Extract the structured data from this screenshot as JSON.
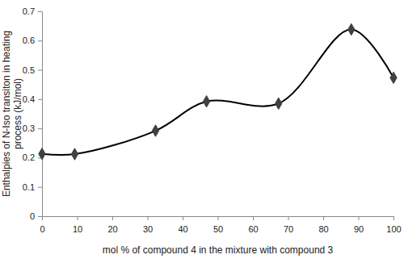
{
  "chart_data": {
    "type": "line",
    "xlabel": "mol % of compound 4 in the mixture with compound 3",
    "ylabel": [
      "Enthalpies of N-Iso transiton in heating",
      "process (kJ/mol)"
    ],
    "x": [
      0,
      9.3,
      32.3,
      46.8,
      67.3,
      88,
      100
    ],
    "values": [
      0.213,
      0.212,
      0.292,
      0.392,
      0.385,
      0.638,
      0.473
    ],
    "color": "#404040",
    "marker": "diamond",
    "line_style": "solid",
    "xlim": [
      0,
      100
    ],
    "xticks": [
      0,
      10,
      20,
      30,
      40,
      50,
      60,
      70,
      80,
      90,
      100
    ],
    "ylim": [
      0,
      0.7
    ],
    "yticks": [
      0,
      0.1,
      0.2,
      0.3,
      0.4,
      0.5,
      0.6,
      0.7
    ],
    "grid": false
  }
}
